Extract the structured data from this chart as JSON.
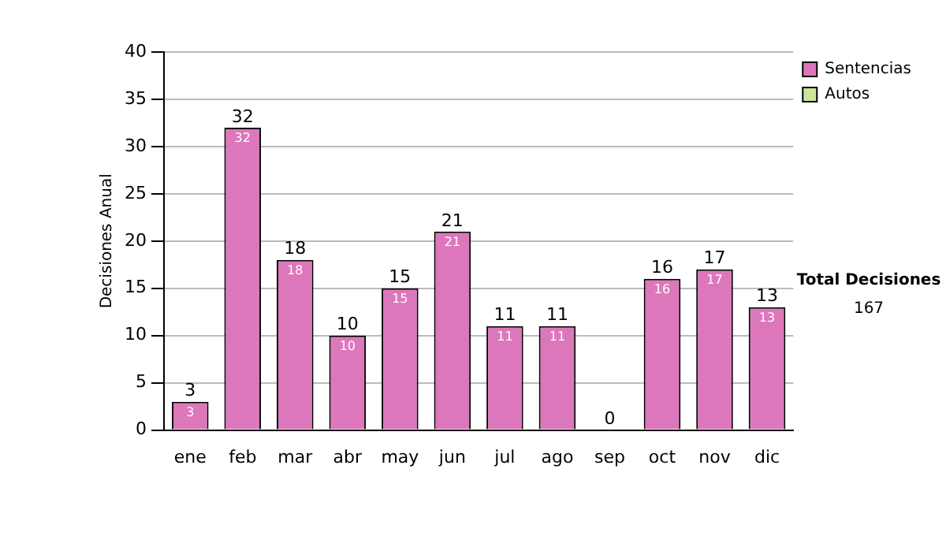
{
  "chart_data": {
    "type": "bar",
    "stacked": true,
    "ylabel": "Decisiones Anual",
    "categories": [
      "ene",
      "feb",
      "mar",
      "abr",
      "may",
      "jun",
      "jul",
      "ago",
      "sep",
      "oct",
      "nov",
      "dic"
    ],
    "series": [
      {
        "name": "Sentencias",
        "color": "#dd77bb",
        "values": [
          3,
          32,
          18,
          10,
          15,
          21,
          11,
          11,
          0,
          16,
          17,
          13
        ],
        "value_labels": [
          "3",
          "32",
          "18",
          "10",
          "15",
          "21",
          "11",
          "11",
          null,
          "16",
          "17",
          "13"
        ]
      },
      {
        "name": "Autos",
        "color": "#cce699",
        "values": [
          0,
          0,
          0,
          0,
          0,
          0,
          0,
          0,
          0,
          0,
          0,
          0
        ]
      }
    ],
    "totals": [
      "3",
      "32",
      "18",
      "10",
      "15",
      "21",
      "11",
      "11",
      "0",
      "16",
      "17",
      "13"
    ],
    "ylim": [
      0,
      40
    ],
    "yticks": [
      0,
      5,
      10,
      15,
      20,
      25,
      30,
      35,
      40
    ],
    "grid": "y",
    "legend": "right",
    "annotations": [
      "Total Decisiones",
      "167"
    ]
  }
}
